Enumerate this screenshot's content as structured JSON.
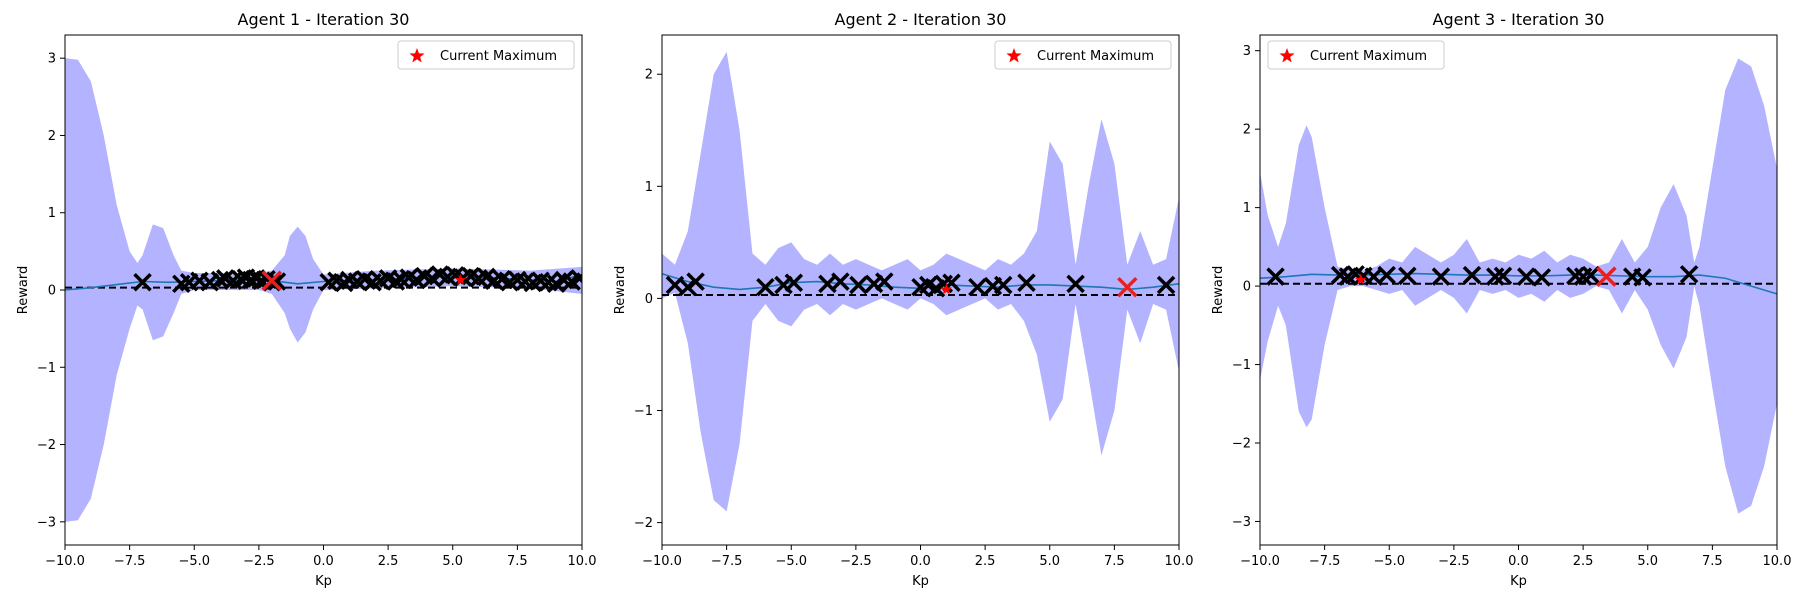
{
  "chart_data": [
    {
      "type": "line",
      "title": "Agent 1 - Iteration 30",
      "xlabel": "Kp",
      "ylabel": "Reward",
      "xlim": [
        -10,
        10
      ],
      "ylim": [
        -3.3,
        3.3
      ],
      "xticks": [
        -10,
        -7.5,
        -5,
        -2.5,
        0,
        2.5,
        5,
        7.5,
        10
      ],
      "xtick_labels": [
        "−10.0",
        "−7.5",
        "−5.0",
        "−2.5",
        "0.0",
        "2.5",
        "5.0",
        "7.5",
        "10.0"
      ],
      "yticks": [
        -3,
        -2,
        -1,
        0,
        1,
        2,
        3
      ],
      "ytick_labels": [
        "−3",
        "−2",
        "−1",
        "0",
        "1",
        "2",
        "3"
      ],
      "baseline": 0.03,
      "legend": {
        "label": "Current Maximum",
        "placement": "upper right"
      },
      "mean": {
        "x": [
          -10,
          -9,
          -8,
          -7,
          -6,
          -5,
          -4,
          -3,
          -2,
          -1,
          0,
          1,
          2,
          3,
          4,
          5,
          6,
          7,
          8,
          9,
          10
        ],
        "y": [
          0.0,
          0.03,
          0.07,
          0.11,
          0.1,
          0.11,
          0.12,
          0.13,
          0.12,
          0.08,
          0.11,
          0.12,
          0.13,
          0.15,
          0.17,
          0.18,
          0.17,
          0.15,
          0.13,
          0.11,
          0.2
        ]
      },
      "band": {
        "x": [
          -10,
          -9.5,
          -9,
          -8.5,
          -8,
          -7.5,
          -7.2,
          -7,
          -6.6,
          -6.2,
          -5.8,
          -5.5,
          -5,
          -3,
          -2.5,
          -2,
          -1.5,
          -1.3,
          -1,
          -0.7,
          -0.4,
          0,
          2,
          5,
          8,
          10
        ],
        "upper": [
          3.0,
          2.98,
          2.7,
          2.0,
          1.1,
          0.5,
          0.35,
          0.45,
          0.85,
          0.8,
          0.45,
          0.25,
          0.22,
          0.22,
          0.22,
          0.25,
          0.45,
          0.7,
          0.82,
          0.7,
          0.4,
          0.2,
          0.25,
          0.28,
          0.25,
          0.3
        ],
        "lower": [
          -3.0,
          -2.98,
          -2.7,
          -2.0,
          -1.1,
          -0.5,
          -0.2,
          -0.25,
          -0.65,
          -0.6,
          -0.3,
          -0.05,
          0.0,
          0.0,
          0.0,
          -0.05,
          -0.3,
          -0.5,
          -0.68,
          -0.55,
          -0.25,
          0.0,
          0.02,
          0.05,
          0.02,
          -0.05
        ]
      },
      "samples": {
        "x": [
          -7.0,
          -5.5,
          -5.2,
          -4.8,
          -4.4,
          -4.0,
          -3.8,
          -3.5,
          -3.2,
          -3.0,
          -2.8,
          -2.6,
          -2.4,
          -2.2,
          -2.0,
          -1.8,
          0.2,
          0.5,
          0.8,
          1.0,
          1.3,
          1.6,
          1.9,
          2.2,
          2.5,
          2.8,
          3.0,
          3.3,
          3.6,
          3.9,
          4.2,
          4.5,
          4.8,
          5.1,
          5.4,
          5.7,
          6.0,
          6.3,
          6.6,
          6.9,
          7.2,
          7.5,
          7.8,
          8.1,
          8.4,
          8.7,
          9.0,
          9.3,
          9.6,
          9.9
        ],
        "y": [
          0.1,
          0.08,
          0.1,
          0.12,
          0.1,
          0.13,
          0.15,
          0.12,
          0.14,
          0.16,
          0.13,
          0.15,
          0.12,
          0.14,
          0.1,
          0.11,
          0.1,
          0.12,
          0.09,
          0.13,
          0.11,
          0.14,
          0.1,
          0.12,
          0.15,
          0.11,
          0.14,
          0.16,
          0.13,
          0.18,
          0.15,
          0.2,
          0.17,
          0.19,
          0.16,
          0.18,
          0.15,
          0.17,
          0.12,
          0.14,
          0.1,
          0.13,
          0.11,
          0.09,
          0.12,
          0.1,
          0.08,
          0.13,
          0.11,
          0.15
        ]
      },
      "latest_sample": {
        "x": -2.0,
        "y": 0.12
      },
      "maximum": {
        "x": 5.3,
        "y": 0.13
      }
    },
    {
      "type": "line",
      "title": "Agent 2 - Iteration 30",
      "xlabel": "Kp",
      "ylabel": "Reward",
      "xlim": [
        -10,
        10
      ],
      "ylim": [
        -2.2,
        2.35
      ],
      "xticks": [
        -10,
        -7.5,
        -5,
        -2.5,
        0,
        2.5,
        5,
        7.5,
        10
      ],
      "xtick_labels": [
        "−10.0",
        "−7.5",
        "−5.0",
        "−2.5",
        "0.0",
        "2.5",
        "5.0",
        "7.5",
        "10.0"
      ],
      "yticks": [
        -2,
        -1,
        0,
        1,
        2
      ],
      "ytick_labels": [
        "−2",
        "−1",
        "0",
        "1",
        "2"
      ],
      "baseline": 0.03,
      "legend": {
        "label": "Current Maximum",
        "placement": "upper right"
      },
      "mean": {
        "x": [
          -10,
          -9,
          -8,
          -7,
          -6,
          -5,
          -4,
          -3,
          -2,
          -1,
          0,
          1,
          2,
          3,
          4,
          5,
          6,
          7,
          8,
          9,
          10
        ],
        "y": [
          0.22,
          0.15,
          0.1,
          0.08,
          0.1,
          0.14,
          0.15,
          0.13,
          0.12,
          0.1,
          0.09,
          0.12,
          0.11,
          0.1,
          0.12,
          0.12,
          0.11,
          0.1,
          0.08,
          0.1,
          0.13
        ]
      },
      "band": {
        "x": [
          -10,
          -9.5,
          -9,
          -8.5,
          -8,
          -7.5,
          -7,
          -6.5,
          -6,
          -5.5,
          -5,
          -4.5,
          -4,
          -3.5,
          -3,
          -2.5,
          -2,
          -1.5,
          -1,
          -0.5,
          0,
          0.5,
          1,
          1.5,
          2,
          2.5,
          3,
          3.5,
          4,
          4.5,
          5,
          5.5,
          6,
          6.5,
          7,
          7.5,
          8,
          8.5,
          9,
          9.5,
          10
        ],
        "upper": [
          0.4,
          0.3,
          0.6,
          1.3,
          2.0,
          2.2,
          1.5,
          0.4,
          0.3,
          0.45,
          0.5,
          0.35,
          0.3,
          0.4,
          0.3,
          0.35,
          0.3,
          0.25,
          0.3,
          0.35,
          0.25,
          0.3,
          0.4,
          0.35,
          0.3,
          0.25,
          0.35,
          0.3,
          0.4,
          0.6,
          1.4,
          1.2,
          0.3,
          1.0,
          1.6,
          1.2,
          0.3,
          0.6,
          0.3,
          0.35,
          0.9
        ],
        "lower": [
          0.0,
          0.05,
          -0.4,
          -1.2,
          -1.8,
          -1.9,
          -1.3,
          -0.2,
          -0.05,
          -0.2,
          -0.25,
          -0.1,
          -0.05,
          -0.15,
          -0.05,
          -0.1,
          -0.05,
          0.0,
          -0.05,
          -0.1,
          0.0,
          -0.05,
          -0.15,
          -0.1,
          -0.05,
          0.0,
          -0.1,
          -0.05,
          -0.2,
          -0.5,
          -1.1,
          -0.9,
          -0.05,
          -0.7,
          -1.4,
          -1.0,
          -0.1,
          -0.4,
          -0.05,
          -0.1,
          -0.65
        ]
      },
      "samples": {
        "x": [
          -9.5,
          -9.0,
          -8.7,
          -6.0,
          -5.3,
          -4.9,
          -3.6,
          -3.1,
          -2.4,
          -1.8,
          -1.4,
          0.0,
          0.3,
          0.6,
          0.9,
          1.2,
          2.2,
          2.8,
          3.2,
          4.1,
          6.0,
          9.5
        ],
        "y": [
          0.12,
          0.1,
          0.15,
          0.1,
          0.12,
          0.14,
          0.13,
          0.15,
          0.12,
          0.13,
          0.15,
          0.1,
          0.12,
          0.09,
          0.13,
          0.14,
          0.1,
          0.11,
          0.12,
          0.14,
          0.13,
          0.12
        ]
      },
      "latest_sample": {
        "x": 8.0,
        "y": 0.1
      },
      "maximum": {
        "x": 1.0,
        "y": 0.08
      }
    },
    {
      "type": "line",
      "title": "Agent 3 - Iteration 30",
      "xlabel": "Kp",
      "ylabel": "Reward",
      "xlim": [
        -10,
        10
      ],
      "ylim": [
        -3.3,
        3.2
      ],
      "xticks": [
        -10,
        -7.5,
        -5,
        -2.5,
        0,
        2.5,
        5,
        7.5,
        10
      ],
      "xtick_labels": [
        "−10.0",
        "−7.5",
        "−5.0",
        "−2.5",
        "0.0",
        "2.5",
        "5.0",
        "7.5",
        "10.0"
      ],
      "yticks": [
        -3,
        -2,
        -1,
        0,
        1,
        2,
        3
      ],
      "ytick_labels": [
        "−3",
        "−2",
        "−1",
        "0",
        "1",
        "2",
        "3"
      ],
      "baseline": 0.03,
      "legend": {
        "label": "Current Maximum",
        "placement": "upper left"
      },
      "mean": {
        "x": [
          -10,
          -9,
          -8,
          -7,
          -6,
          -5,
          -4,
          -3,
          -2,
          -1,
          0,
          1,
          2,
          3,
          4,
          5,
          6,
          7,
          8,
          9,
          10
        ],
        "y": [
          0.1,
          0.12,
          0.15,
          0.14,
          0.14,
          0.15,
          0.16,
          0.15,
          0.14,
          0.14,
          0.13,
          0.13,
          0.14,
          0.14,
          0.13,
          0.12,
          0.12,
          0.14,
          0.1,
          0.0,
          -0.1
        ]
      },
      "band": {
        "x": [
          -10,
          -9.7,
          -9.3,
          -9,
          -8.5,
          -8.2,
          -8,
          -7.5,
          -7,
          -6.5,
          -6,
          -5.5,
          -5,
          -4.5,
          -4,
          -3.5,
          -3,
          -2.5,
          -2,
          -1.5,
          -1,
          -0.5,
          0,
          0.5,
          1,
          1.5,
          2,
          2.5,
          3,
          3.5,
          4,
          4.5,
          5,
          5.5,
          6,
          6.5,
          6.8,
          7,
          7.5,
          8,
          8.5,
          9,
          9.5,
          10
        ],
        "upper": [
          1.45,
          0.9,
          0.5,
          0.8,
          1.8,
          2.05,
          1.9,
          1.0,
          0.25,
          0.2,
          0.2,
          0.25,
          0.35,
          0.3,
          0.5,
          0.4,
          0.3,
          0.4,
          0.6,
          0.3,
          0.35,
          0.3,
          0.4,
          0.35,
          0.45,
          0.3,
          0.4,
          0.35,
          0.25,
          0.3,
          0.6,
          0.3,
          0.5,
          1.0,
          1.3,
          0.9,
          0.3,
          0.5,
          1.5,
          2.5,
          2.9,
          2.8,
          2.3,
          1.5
        ],
        "lower": [
          -1.2,
          -0.7,
          -0.25,
          -0.5,
          -1.6,
          -1.8,
          -1.7,
          -0.75,
          -0.05,
          0.0,
          0.0,
          -0.05,
          -0.1,
          -0.05,
          -0.25,
          -0.15,
          -0.05,
          -0.15,
          -0.35,
          -0.05,
          -0.1,
          -0.05,
          -0.15,
          -0.1,
          -0.2,
          -0.05,
          -0.15,
          -0.1,
          0.0,
          -0.05,
          -0.35,
          -0.05,
          -0.3,
          -0.75,
          -1.05,
          -0.65,
          0.0,
          -0.25,
          -1.3,
          -2.3,
          -2.9,
          -2.8,
          -2.3,
          -1.5
        ]
      },
      "samples": {
        "x": [
          -9.4,
          -6.9,
          -6.6,
          -6.3,
          -6.0,
          -5.6,
          -5.1,
          -4.3,
          -3.0,
          -1.8,
          -0.9,
          -0.6,
          0.3,
          0.9,
          2.2,
          2.5,
          2.8,
          4.4,
          4.8,
          6.6
        ],
        "y": [
          0.12,
          0.14,
          0.12,
          0.15,
          0.13,
          0.12,
          0.14,
          0.13,
          0.12,
          0.14,
          0.12,
          0.13,
          0.12,
          0.11,
          0.13,
          0.12,
          0.14,
          0.12,
          0.11,
          0.15
        ]
      },
      "latest_sample": {
        "x": 3.4,
        "y": 0.12
      },
      "maximum": {
        "x": -6.1,
        "y": 0.08
      }
    }
  ],
  "colors": {
    "band": "#b3b3ff",
    "mean": "#1f77b4",
    "sample": "#000000",
    "latest": "#e8201f",
    "maximum": "#ff0000",
    "baseline": "#000000"
  }
}
